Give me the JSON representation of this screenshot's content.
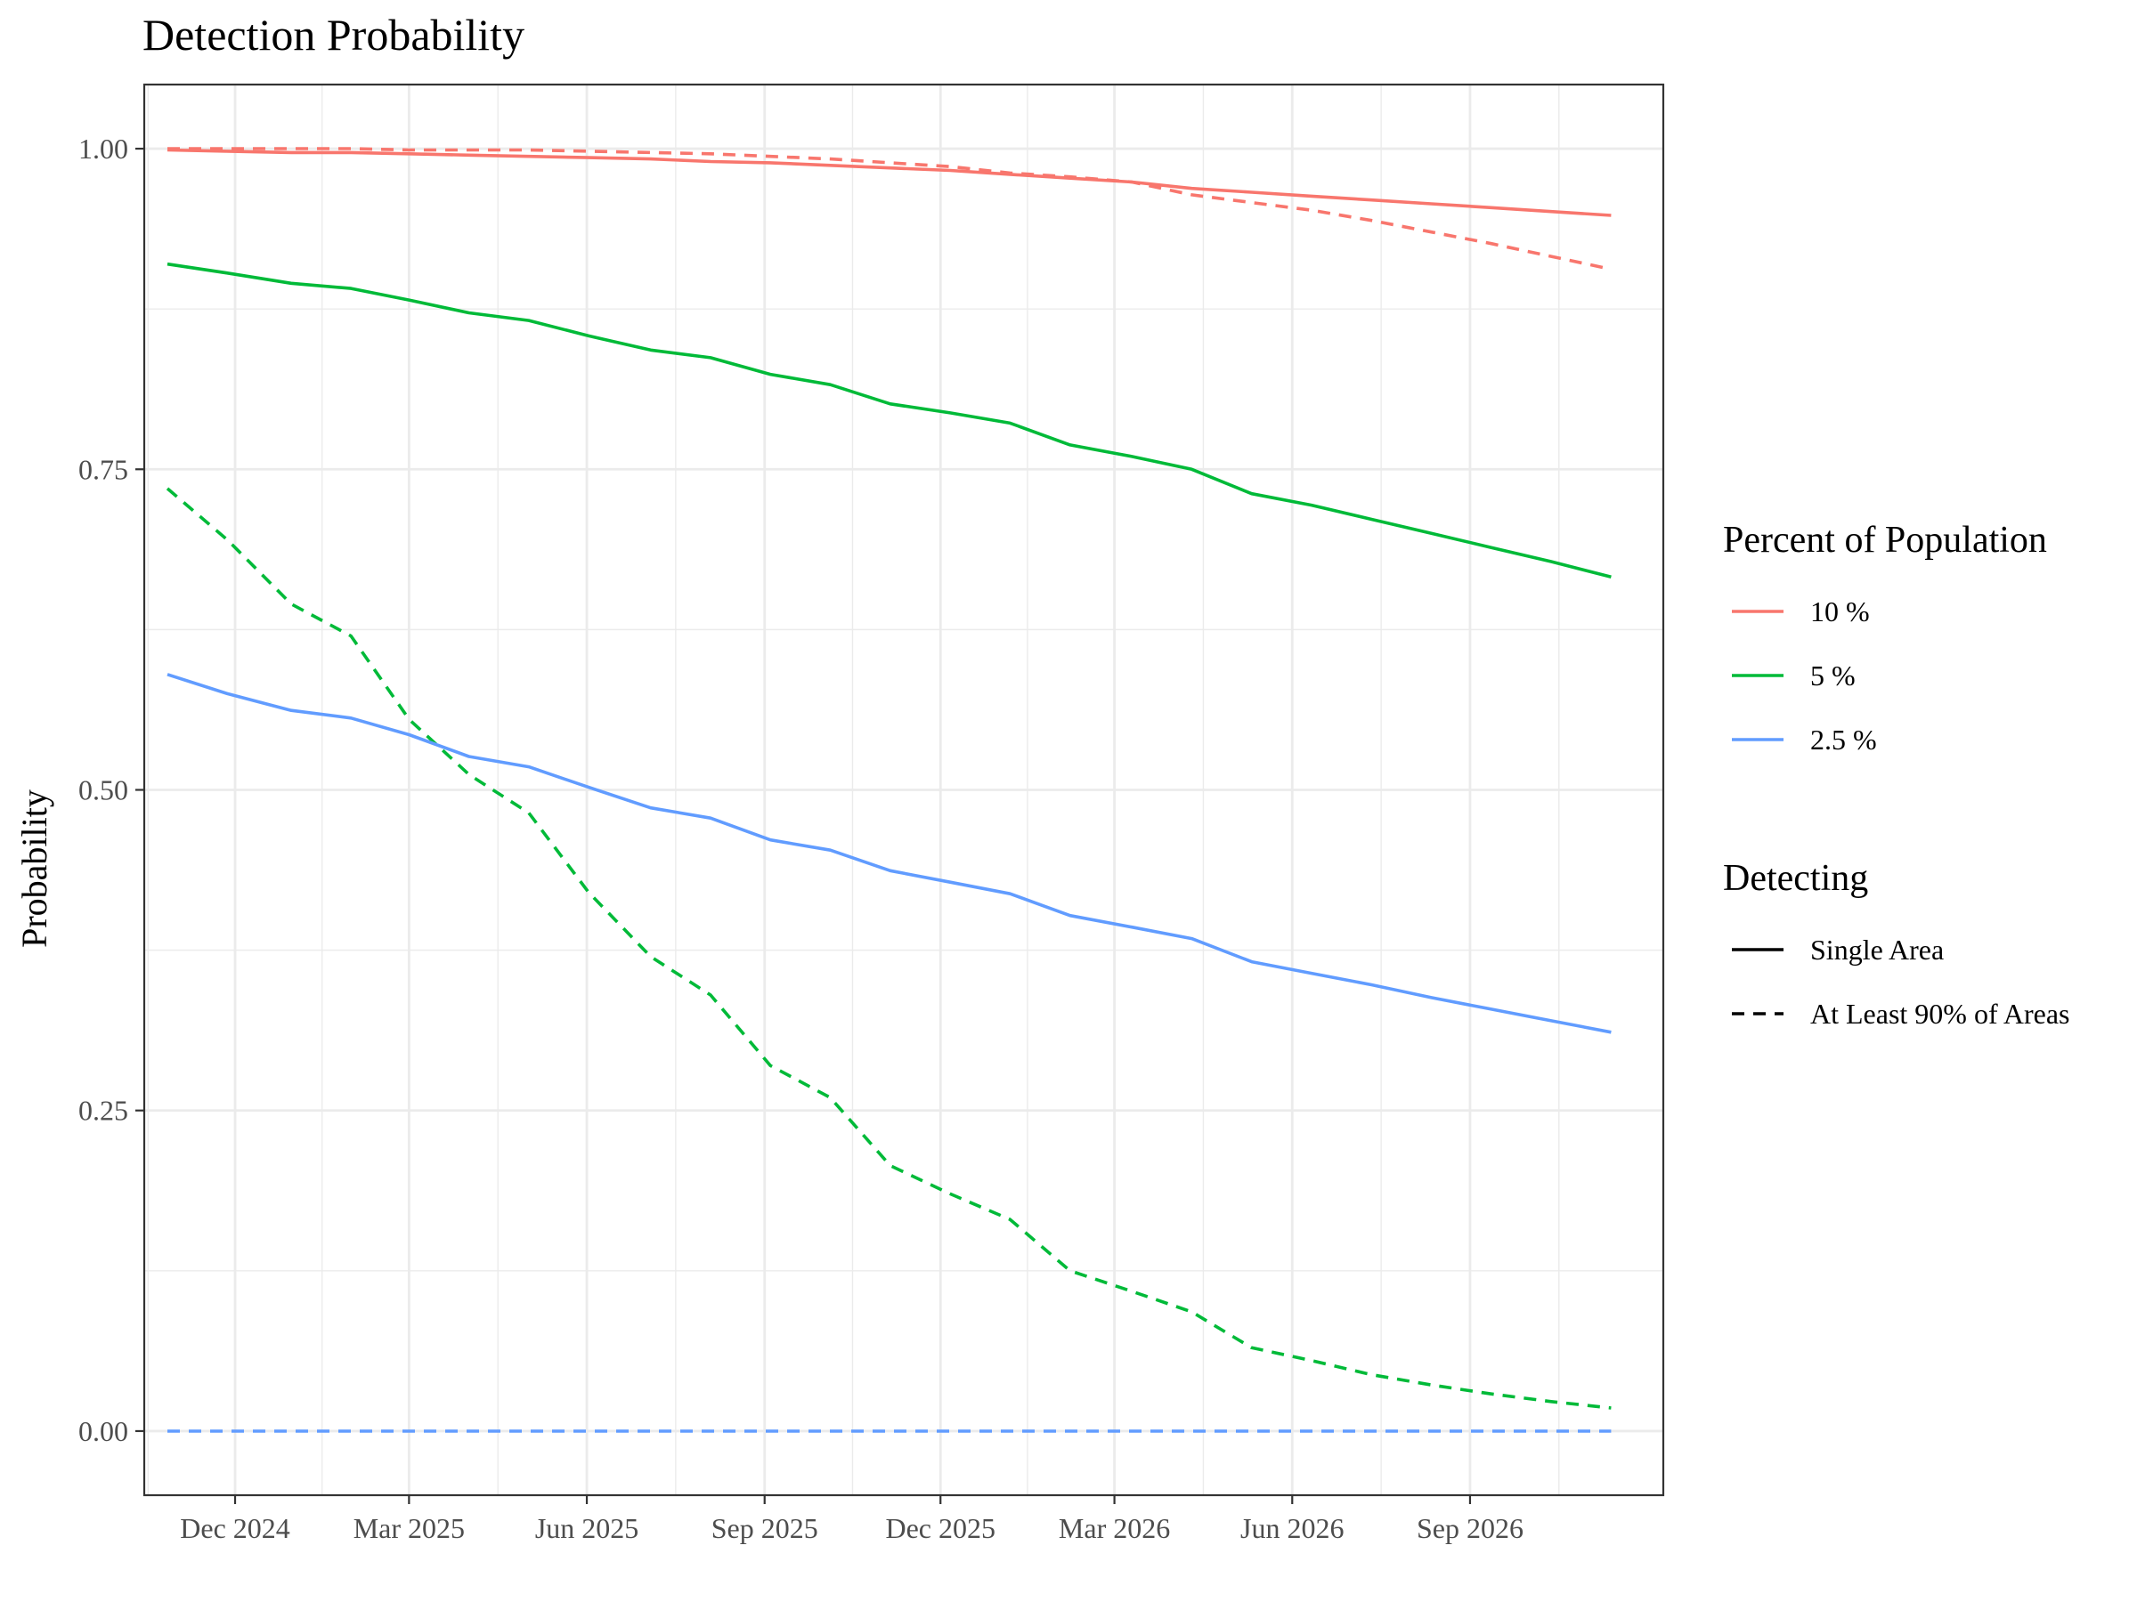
{
  "chart_data": {
    "type": "line",
    "title": "Detection Probability",
    "xlabel": "",
    "ylabel": "Probability",
    "x_axis": {
      "type": "date",
      "range": [
        "2024-10-15",
        "2026-12-10"
      ],
      "ticks": [
        "2024-12-01",
        "2025-03-01",
        "2025-06-01",
        "2025-09-01",
        "2025-12-01",
        "2026-03-01",
        "2026-06-01",
        "2026-09-01"
      ],
      "tick_labels": [
        "Dec 2024",
        "Mar 2025",
        "Jun 2025",
        "Sep 2025",
        "Dec 2025",
        "Mar 2026",
        "Jun 2026",
        "Sep 2026"
      ]
    },
    "y_axis": {
      "range": [
        -0.05,
        1.05
      ],
      "ticks": [
        0.0,
        0.25,
        0.5,
        0.75,
        1.0
      ],
      "tick_labels": [
        "0.00",
        "0.25",
        "0.50",
        "0.75",
        "1.00"
      ]
    },
    "grid": true,
    "legend_position": "right",
    "x": [
      "2024-10-27",
      "2024-11-27",
      "2024-12-30",
      "2025-01-30",
      "2025-03-01",
      "2025-04-01",
      "2025-05-02",
      "2025-06-02",
      "2025-07-04",
      "2025-08-04",
      "2025-09-04",
      "2025-10-05",
      "2025-11-05",
      "2025-12-06",
      "2026-01-06",
      "2026-02-06",
      "2026-03-10",
      "2026-04-10",
      "2026-05-11",
      "2026-06-11",
      "2026-07-12",
      "2026-08-12",
      "2026-09-12",
      "2026-10-13",
      "2026-11-13"
    ],
    "legend_groups": [
      {
        "title": "Percent of Population",
        "entries": [
          {
            "label": "10 %",
            "color": "#F8766D"
          },
          {
            "label": "5 %",
            "color": "#00BA38"
          },
          {
            "label": "2.5 %",
            "color": "#619CFF"
          }
        ]
      },
      {
        "title": "Detecting",
        "entries": [
          {
            "label": "Single Area",
            "style": "solid"
          },
          {
            "label": "At Least 90% of Areas",
            "style": "dashed"
          }
        ]
      }
    ],
    "series": [
      {
        "population": "10 %",
        "detecting": "Single Area",
        "color": "#F8766D",
        "style": "solid",
        "values": [
          0.999,
          0.998,
          0.997,
          0.997,
          0.996,
          0.995,
          0.994,
          0.993,
          0.992,
          0.99,
          0.989,
          0.987,
          0.985,
          0.983,
          0.98,
          0.977,
          0.974,
          0.969,
          0.966,
          0.963,
          0.96,
          0.957,
          0.954,
          0.951,
          0.948
        ]
      },
      {
        "population": "10 %",
        "detecting": "At Least 90% of Areas",
        "color": "#F8766D",
        "style": "dashed",
        "values": [
          1.0,
          1.0,
          1.0,
          1.0,
          0.999,
          0.999,
          0.999,
          0.998,
          0.997,
          0.996,
          0.994,
          0.992,
          0.989,
          0.986,
          0.981,
          0.978,
          0.974,
          0.964,
          0.958,
          0.952,
          0.944,
          0.935,
          0.926,
          0.916,
          0.906
        ]
      },
      {
        "population": "5 %",
        "detecting": "Single Area",
        "color": "#00BA38",
        "style": "solid",
        "values": [
          0.91,
          0.903,
          0.895,
          0.891,
          0.882,
          0.872,
          0.866,
          0.854,
          0.843,
          0.837,
          0.824,
          0.816,
          0.801,
          0.794,
          0.786,
          0.769,
          0.76,
          0.75,
          0.731,
          0.722,
          0.711,
          0.7,
          0.689,
          0.678,
          0.666
        ]
      },
      {
        "population": "5 %",
        "detecting": "At Least 90% of Areas",
        "color": "#00BA38",
        "style": "dashed",
        "values": [
          0.735,
          0.695,
          0.645,
          0.62,
          0.555,
          0.512,
          0.482,
          0.42,
          0.37,
          0.34,
          0.285,
          0.26,
          0.207,
          0.185,
          0.165,
          0.125,
          0.109,
          0.093,
          0.065,
          0.055,
          0.044,
          0.036,
          0.029,
          0.023,
          0.018
        ]
      },
      {
        "population": "2.5 %",
        "detecting": "Single Area",
        "color": "#619CFF",
        "style": "solid",
        "values": [
          0.59,
          0.575,
          0.562,
          0.556,
          0.543,
          0.526,
          0.518,
          0.502,
          0.486,
          0.478,
          0.461,
          0.453,
          0.437,
          0.428,
          0.419,
          0.402,
          0.393,
          0.384,
          0.366,
          0.357,
          0.348,
          0.338,
          0.329,
          0.32,
          0.311
        ]
      },
      {
        "population": "2.5 %",
        "detecting": "At Least 90% of Areas",
        "color": "#619CFF",
        "style": "dashed",
        "values": [
          0.0,
          0.0,
          0.0,
          0.0,
          0.0,
          0.0,
          0.0,
          0.0,
          0.0,
          0.0,
          0.0,
          0.0,
          0.0,
          0.0,
          0.0,
          0.0,
          0.0,
          0.0,
          0.0,
          0.0,
          0.0,
          0.0,
          0.0,
          0.0,
          0.0
        ]
      }
    ]
  }
}
